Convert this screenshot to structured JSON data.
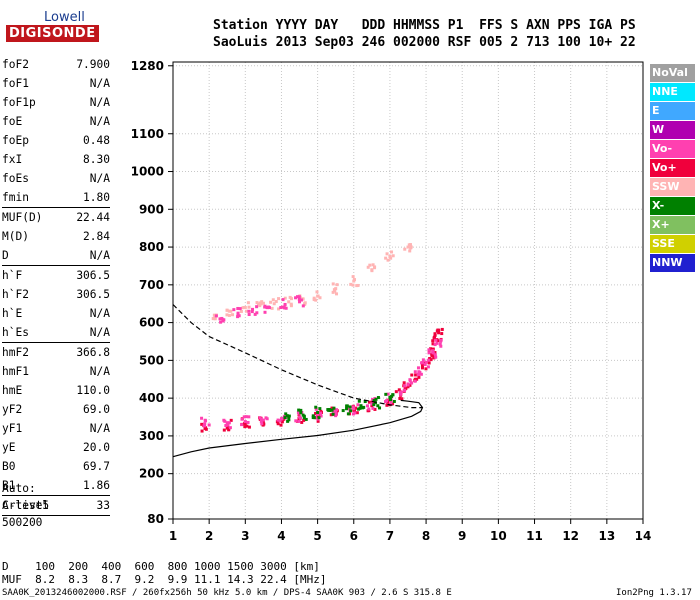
{
  "logo": {
    "line1": "Lowell",
    "line2": "DIGISONDE"
  },
  "header": {
    "line1": "Station YYYY DAY   DDD HHMMSS P1  FFS S AXN PPS IGA PS",
    "line2": "SaoLuis 2013 Sep03 246 002000 RSF 005 2 713 100 10+ 22"
  },
  "params": [
    {
      "name": "foF2",
      "value": "7.900",
      "sep": false
    },
    {
      "name": "foF1",
      "value": "N/A",
      "sep": false
    },
    {
      "name": "foF1p",
      "value": "N/A",
      "sep": false
    },
    {
      "name": "foE",
      "value": "N/A",
      "sep": false
    },
    {
      "name": "foEp",
      "value": "0.48",
      "sep": false
    },
    {
      "name": "fxI",
      "value": "8.30",
      "sep": false
    },
    {
      "name": "foEs",
      "value": "N/A",
      "sep": false
    },
    {
      "name": "fmin",
      "value": "1.80",
      "sep": true
    },
    {
      "name": "MUF(D)",
      "value": "22.44",
      "sep": false
    },
    {
      "name": "M(D)",
      "value": "2.84",
      "sep": false
    },
    {
      "name": "D",
      "value": "N/A",
      "sep": true
    },
    {
      "name": "h`F",
      "value": "306.5",
      "sep": false
    },
    {
      "name": "h`F2",
      "value": "306.5",
      "sep": false
    },
    {
      "name": "h`E",
      "value": "N/A",
      "sep": false
    },
    {
      "name": "h`Es",
      "value": "N/A",
      "sep": true
    },
    {
      "name": "hmF2",
      "value": "366.8",
      "sep": false
    },
    {
      "name": "hmF1",
      "value": "N/A",
      "sep": false
    },
    {
      "name": "hmE",
      "value": "110.0",
      "sep": false
    },
    {
      "name": "yF2",
      "value": "69.0",
      "sep": false
    },
    {
      "name": "yF1",
      "value": "N/A",
      "sep": false
    },
    {
      "name": "yE",
      "value": "20.0",
      "sep": false
    },
    {
      "name": "B0",
      "value": "69.7",
      "sep": false
    },
    {
      "name": "B1",
      "value": "1.86",
      "sep": true
    },
    {
      "name": "C-level",
      "value": "33",
      "sep": true
    }
  ],
  "auto": {
    "line1": "Auto:",
    "line2": "Artist5",
    "line3": "500200"
  },
  "legend": [
    {
      "label": "NoVal",
      "color": "#a0a0a0"
    },
    {
      "label": "NNE",
      "color": "#00e8ff"
    },
    {
      "label": "E",
      "color": "#40a8ff"
    },
    {
      "label": "W",
      "color": "#b000b0"
    },
    {
      "label": "Vo-",
      "color": "#ff40b0"
    },
    {
      "label": "Vo+",
      "color": "#f0003c"
    },
    {
      "label": "SSW",
      "color": "#ffb4b4"
    },
    {
      "label": "X-",
      "color": "#008000"
    },
    {
      "label": "X+",
      "color": "#80c060"
    },
    {
      "label": "SSE",
      "color": "#d0d000"
    },
    {
      "label": "NNW",
      "color": "#2020d0"
    }
  ],
  "muf_table": {
    "d_row": "D    100  200  400  600  800 1000 1500 3000 [km]",
    "muf_row": "MUF  8.2  8.3  8.7  9.2  9.9 11.1 14.3 22.4 [MHz]"
  },
  "footer": {
    "left": "SAA0K_2013246002000.RSF / 260fx256h 50 kHz 5.0 km / DPS-4 SAA0K 903 / 2.6 S 315.8 E",
    "right": "Ion2Png 1.3.17"
  },
  "chart_data": {
    "type": "scatter",
    "xlim": [
      1,
      14
    ],
    "ylim": [
      80,
      1290
    ],
    "x_ticks": [
      1,
      2,
      3,
      4,
      5,
      6,
      7,
      8,
      9,
      10,
      11,
      12,
      13,
      14
    ],
    "y_ticks": [
      80,
      200,
      300,
      400,
      500,
      600,
      700,
      800,
      900,
      1000,
      1100,
      1280
    ],
    "grid": true,
    "profile_solid": [
      [
        1,
        245
      ],
      [
        1.5,
        258
      ],
      [
        2,
        268
      ],
      [
        3,
        280
      ],
      [
        4,
        291
      ],
      [
        5,
        301
      ],
      [
        6,
        315
      ],
      [
        7,
        335
      ],
      [
        7.6,
        352
      ],
      [
        7.85,
        365
      ],
      [
        7.9,
        375
      ],
      [
        7.8,
        388
      ],
      [
        7.5,
        392
      ],
      [
        7.3,
        394
      ]
    ],
    "profile_dashed": [
      [
        1,
        648
      ],
      [
        1.5,
        600
      ],
      [
        2,
        563
      ],
      [
        3,
        520
      ],
      [
        4,
        475
      ],
      [
        5,
        435
      ],
      [
        6,
        400
      ],
      [
        7,
        382
      ],
      [
        7.6,
        375
      ],
      [
        7.9,
        375
      ]
    ],
    "trace_series": [
      {
        "color": "#f0003c",
        "points": [
          [
            1.9,
            320
          ],
          [
            2.5,
            328
          ],
          [
            3,
            332
          ],
          [
            3.5,
            336
          ],
          [
            4,
            340
          ],
          [
            4.5,
            346
          ],
          [
            5,
            352
          ],
          [
            5.5,
            360
          ],
          [
            6,
            368
          ],
          [
            6.5,
            380
          ],
          [
            7,
            395
          ],
          [
            7.3,
            410
          ],
          [
            7.5,
            430
          ],
          [
            7.7,
            450
          ],
          [
            7.9,
            480
          ],
          [
            8.1,
            505
          ],
          [
            8.2,
            530
          ],
          [
            8.3,
            555
          ],
          [
            8.35,
            580
          ]
        ]
      },
      {
        "color": "#ff40b0",
        "points": [
          [
            1.9,
            340
          ],
          [
            2.5,
            335
          ],
          [
            3,
            338
          ],
          [
            3.5,
            342
          ],
          [
            4,
            345
          ],
          [
            4.5,
            350
          ],
          [
            5,
            357
          ],
          [
            5.5,
            365
          ],
          [
            6,
            372
          ],
          [
            6.5,
            385
          ],
          [
            7,
            398
          ],
          [
            7.4,
            420
          ],
          [
            7.6,
            440
          ],
          [
            7.8,
            470
          ],
          [
            8,
            495
          ],
          [
            8.2,
            520
          ],
          [
            8.3,
            545
          ]
        ]
      },
      {
        "color": "#008000",
        "points": [
          [
            4.2,
            350
          ],
          [
            4.6,
            355
          ],
          [
            5,
            362
          ],
          [
            5.4,
            368
          ],
          [
            5.8,
            372
          ],
          [
            6.2,
            380
          ],
          [
            6.6,
            388
          ],
          [
            7,
            402
          ]
        ]
      },
      {
        "color": "#ffb4b4",
        "points": [
          [
            2.2,
            620
          ],
          [
            2.6,
            630
          ],
          [
            3,
            640
          ],
          [
            3.4,
            645
          ],
          [
            3.8,
            650
          ],
          [
            4.2,
            655
          ],
          [
            4.6,
            662
          ],
          [
            5,
            670
          ],
          [
            5.5,
            690
          ],
          [
            6,
            710
          ],
          [
            6.5,
            740
          ],
          [
            7,
            775
          ],
          [
            7.5,
            800
          ]
        ]
      },
      {
        "color": "#ff40b0",
        "points": [
          [
            2.3,
            610
          ],
          [
            2.8,
            625
          ],
          [
            3.2,
            635
          ],
          [
            3.6,
            640
          ],
          [
            4.1,
            648
          ],
          [
            4.5,
            655
          ]
        ]
      }
    ]
  }
}
